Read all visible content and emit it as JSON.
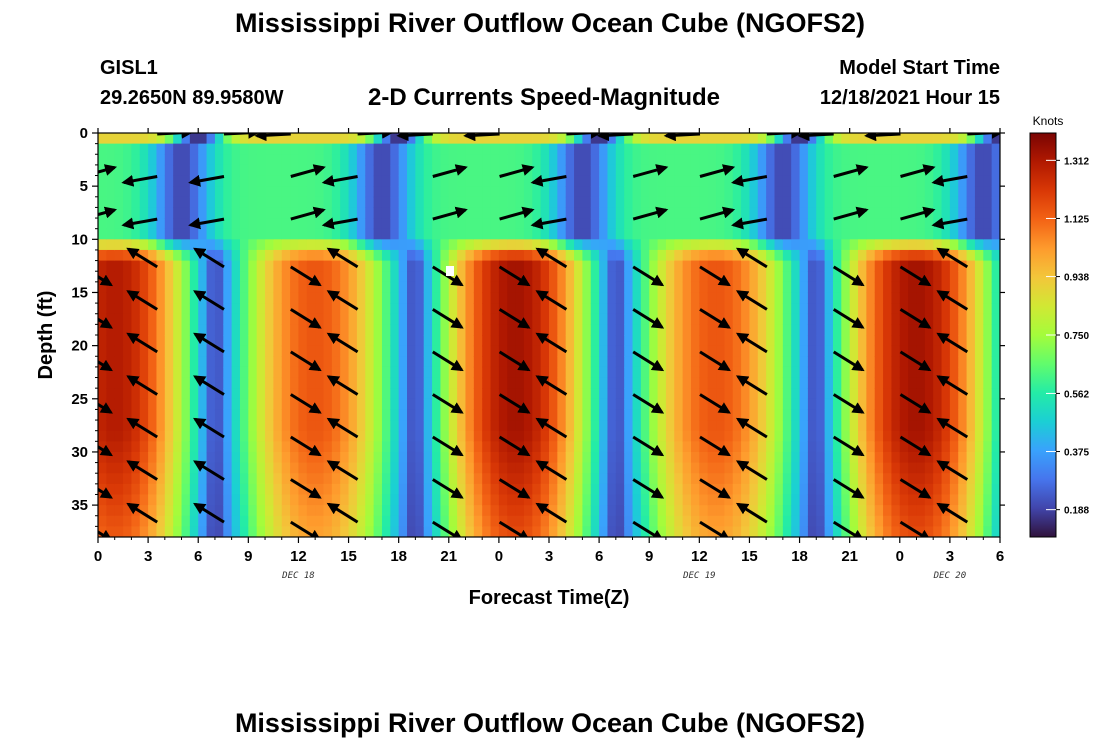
{
  "header": {
    "title": "Mississippi River Outflow Ocean Cube (NGOFS2)",
    "station_id": "GISL1",
    "station_coords": "29.2650N  89.9580W",
    "subtitle": "2-D Currents Speed-Magnitude",
    "model_start_label": "Model Start Time",
    "model_start_value": "12/18/2021 Hour 15"
  },
  "footer": {
    "repeated_title": "Mississippi River Outflow Ocean Cube (NGOFS2)"
  },
  "chart_data": {
    "type": "heatmap",
    "xlabel": "Forecast Time(Z)",
    "ylabel": "Depth (ft)",
    "xlim": [
      0,
      54
    ],
    "ylim": [
      0,
      38
    ],
    "y_inverted": true,
    "x_tick_labels": [
      "0",
      "3",
      "6",
      "9",
      "12",
      "15",
      "18",
      "21",
      "0",
      "3",
      "6",
      "9",
      "12",
      "15",
      "18",
      "21",
      "0",
      "3",
      "6"
    ],
    "y_tick_labels": [
      "0",
      "5",
      "10",
      "15",
      "20",
      "25",
      "30",
      "35"
    ],
    "y_ticks": [
      0,
      5,
      10,
      15,
      20,
      25,
      30,
      35
    ],
    "date_labels": [
      {
        "text": "DEC 18",
        "x": 12
      },
      {
        "text": "DEC 19",
        "x": 36
      },
      {
        "text": "DEC 20",
        "x": 51
      }
    ],
    "colorbar": {
      "label": "Knots",
      "range": [
        0.1,
        1.4
      ],
      "ticks": [
        "0.188",
        "0.375",
        "0.562",
        "0.750",
        "0.938",
        "1.125",
        "1.312"
      ],
      "tick_values": [
        0.188,
        0.375,
        0.562,
        0.75,
        0.938,
        1.125,
        1.312
      ],
      "colors": [
        "#30123b",
        "#4145ab",
        "#4675ed",
        "#39a2fc",
        "#1bcfd4",
        "#24eca6",
        "#61fc6c",
        "#a4fc3b",
        "#d1e834",
        "#f3c63a",
        "#fe9b2d",
        "#f36315",
        "#d93806",
        "#b11901",
        "#7a0403"
      ]
    },
    "speed_peaks_knots": [
      1.3,
      1.15,
      1.33,
      1.15,
      1.33
    ],
    "peak_hours": [
      1,
      13,
      25,
      37,
      49
    ],
    "minimum_speed_knots": 0.15
  }
}
